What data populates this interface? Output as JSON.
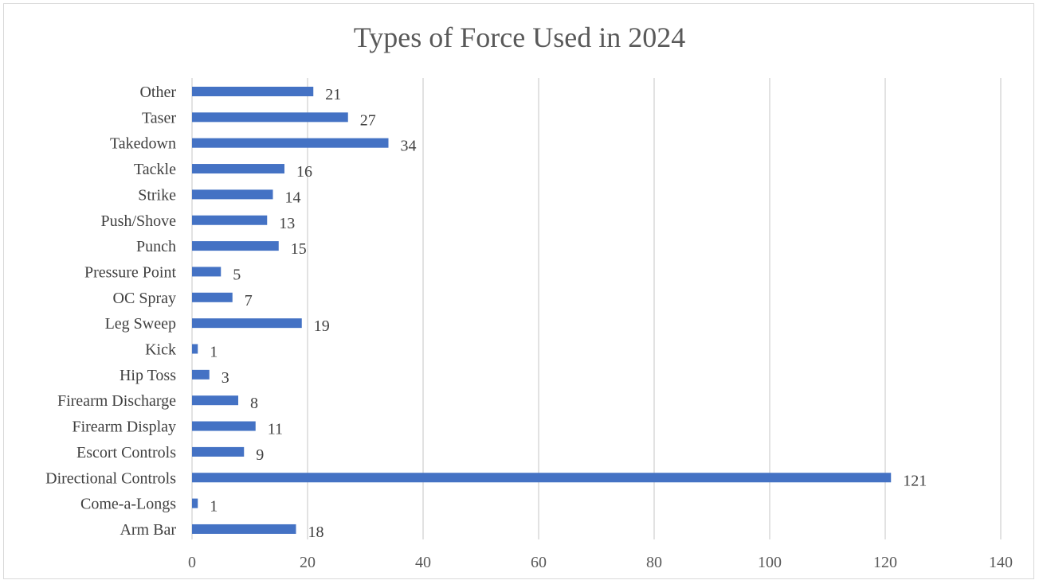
{
  "chart_data": {
    "type": "bar",
    "orientation": "horizontal",
    "title": "Types of Force Used in 2024",
    "categories": [
      "Other",
      "Taser",
      "Takedown",
      "Tackle",
      "Strike",
      "Push/Shove",
      "Punch",
      "Pressure Point",
      "OC Spray",
      "Leg Sweep",
      "Kick",
      "Hip Toss",
      "Firearm Discharge",
      "Firearm Display",
      "Escort Controls",
      "Directional Controls",
      "Come-a-Longs",
      "Arm Bar"
    ],
    "values": [
      21,
      27,
      34,
      16,
      14,
      13,
      15,
      5,
      7,
      19,
      1,
      3,
      8,
      11,
      9,
      121,
      1,
      18
    ],
    "xlim": [
      0,
      140
    ],
    "xticks": [
      0,
      20,
      40,
      60,
      80,
      100,
      120,
      140
    ],
    "grid": true,
    "data_labels": true,
    "bar_color": "#4472C4",
    "grid_color": "#d9d9d9"
  }
}
